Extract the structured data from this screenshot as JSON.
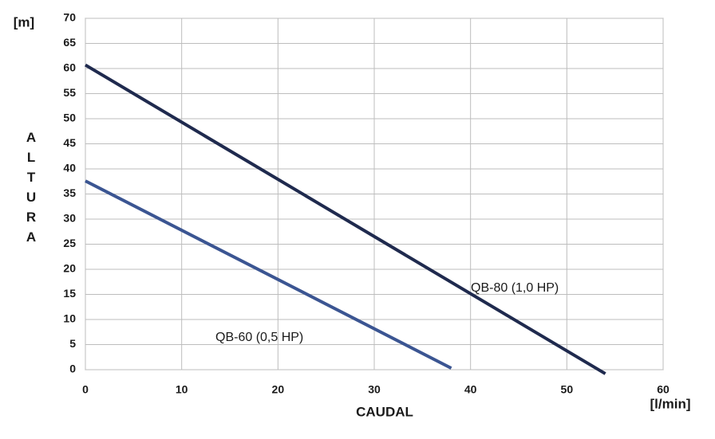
{
  "chart_data": {
    "type": "line",
    "y_label": "ALTURA",
    "y_unit": "[m]",
    "x_label": "CAUDAL",
    "x_unit": "[l/min]",
    "xlim": [
      0,
      60
    ],
    "xticks": [
      0,
      10,
      20,
      30,
      40,
      50,
      60
    ],
    "ylim": [
      0,
      70
    ],
    "yticks": [
      0,
      5,
      10,
      15,
      20,
      25,
      30,
      35,
      40,
      45,
      50,
      55,
      60,
      65,
      70
    ],
    "grid": true,
    "series": [
      {
        "name": "QB-80 (1,0 HP)",
        "color": "#1f2a4e",
        "x": [
          0,
          54
        ],
        "values": [
          60.7,
          -0.8
        ]
      },
      {
        "name": "QB-60 (0,5 HP)",
        "color": "#3b5592",
        "x": [
          0,
          38
        ],
        "values": [
          37.6,
          0.3
        ]
      }
    ]
  }
}
